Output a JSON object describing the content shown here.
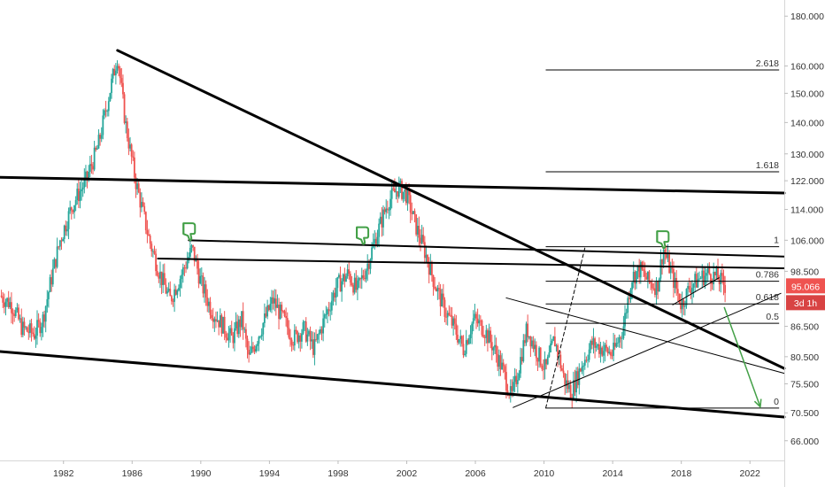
{
  "chart_data": {
    "type": "candlestick",
    "x_range": [
      1978.3,
      2024.0
    ],
    "y_range": [
      63.0,
      187.0
    ],
    "y_scale": "log",
    "x_ticks": [
      "1982",
      "1986",
      "1990",
      "1994",
      "1998",
      "2002",
      "2006",
      "2010",
      "2014",
      "2018",
      "2022"
    ],
    "y_ticks": [
      "180.000",
      "160.000",
      "150.000",
      "140.000",
      "130.000",
      "122.000",
      "114.000",
      "106.000",
      "98.500",
      "86.500",
      "80.500",
      "75.500",
      "70.500",
      "66.000"
    ],
    "price_path": [
      [
        1978.3,
        93
      ],
      [
        1979.0,
        91
      ],
      [
        1979.6,
        86
      ],
      [
        1980.3,
        85
      ],
      [
        1980.8,
        88
      ],
      [
        1981.3,
        97
      ],
      [
        1981.8,
        106
      ],
      [
        1982.5,
        115
      ],
      [
        1983.3,
        122
      ],
      [
        1984.0,
        132
      ],
      [
        1984.6,
        148
      ],
      [
        1985.15,
        164
      ],
      [
        1985.6,
        140
      ],
      [
        1986.2,
        122
      ],
      [
        1987.0,
        106
      ],
      [
        1987.6,
        98
      ],
      [
        1988.2,
        92
      ],
      [
        1988.9,
        98
      ],
      [
        1989.5,
        104
      ],
      [
        1990.0,
        96
      ],
      [
        1990.6,
        90
      ],
      [
        1991.2,
        87
      ],
      [
        1991.8,
        84
      ],
      [
        1992.4,
        88
      ],
      [
        1992.8,
        80
      ],
      [
        1993.5,
        86
      ],
      [
        1994.2,
        92
      ],
      [
        1994.8,
        88
      ],
      [
        1995.4,
        84
      ],
      [
        1996.0,
        86
      ],
      [
        1996.6,
        82
      ],
      [
        1997.2,
        88
      ],
      [
        1997.9,
        95
      ],
      [
        1998.6,
        98
      ],
      [
        1999.1,
        94
      ],
      [
        1999.7,
        100
      ],
      [
        2000.3,
        108
      ],
      [
        2000.9,
        116
      ],
      [
        2001.5,
        120
      ],
      [
        2002.0,
        118
      ],
      [
        2002.5,
        110
      ],
      [
        2003.0,
        104
      ],
      [
        2003.6,
        96
      ],
      [
        2004.2,
        90
      ],
      [
        2004.8,
        86
      ],
      [
        2005.3,
        82
      ],
      [
        2005.9,
        88
      ],
      [
        2006.5,
        86
      ],
      [
        2007.1,
        82
      ],
      [
        2007.6,
        78
      ],
      [
        2008.1,
        73
      ],
      [
        2008.5,
        78
      ],
      [
        2009.0,
        86
      ],
      [
        2009.5,
        82
      ],
      [
        2010.1,
        78
      ],
      [
        2010.6,
        84
      ],
      [
        2011.2,
        76
      ],
      [
        2011.6,
        74
      ],
      [
        2012.2,
        79
      ],
      [
        2012.8,
        83
      ],
      [
        2013.4,
        82
      ],
      [
        2014.0,
        81
      ],
      [
        2014.6,
        86
      ],
      [
        2015.1,
        97
      ],
      [
        2015.6,
        99
      ],
      [
        2016.1,
        96
      ],
      [
        2016.6,
        95
      ],
      [
        2016.95,
        104
      ],
      [
        2017.5,
        97
      ],
      [
        2018.0,
        91
      ],
      [
        2018.5,
        95
      ],
      [
        2019.1,
        97
      ],
      [
        2019.6,
        98
      ],
      [
        2020.1,
        97
      ],
      [
        2020.6,
        95
      ]
    ],
    "last_price": "95.066",
    "countdown": "3d 1h",
    "fib_levels": [
      {
        "label": "2.618",
        "value": 158.5
      },
      {
        "label": "1.618",
        "value": 124.6
      },
      {
        "label": "1",
        "value": 104.4
      },
      {
        "label": "0.786",
        "value": 96.2
      },
      {
        "label": "0.618",
        "value": 91.2
      },
      {
        "label": "0.5",
        "value": 87.1
      },
      {
        "label": "0",
        "value": 71.3
      }
    ],
    "fib_x_range": [
      2010.1,
      2023.7
    ],
    "trendlines": [
      {
        "kind": "thick",
        "from": [
          1985.15,
          166
        ],
        "to": [
          2024.0,
          78.3
        ]
      },
      {
        "kind": "thick",
        "from": [
          1978.3,
          123
        ],
        "to": [
          2024.0,
          118.5
        ]
      },
      {
        "kind": "thick",
        "from": [
          1978.3,
          81.5
        ],
        "to": [
          2024.0,
          69.8
        ]
      },
      {
        "kind": "medium",
        "from": [
          1989.3,
          106.0
        ],
        "to": [
          2024.0,
          102.0
        ]
      },
      {
        "kind": "medium",
        "from": [
          1987.5,
          101.5
        ],
        "to": [
          2024.0,
          99.2
        ]
      },
      {
        "kind": "thin",
        "from": [
          2007.8,
          92.5
        ],
        "to": [
          2024.0,
          77.4
        ]
      },
      {
        "kind": "thin",
        "from": [
          2008.2,
          71.4
        ],
        "to": [
          2023.8,
          93.5
        ]
      },
      {
        "kind": "thin",
        "from": [
          2017.5,
          91.0
        ],
        "to": [
          2020.2,
          97.0
        ]
      },
      {
        "kind": "dashed",
        "from": [
          2010.1,
          71.3
        ],
        "to": [
          2012.4,
          104.4
        ]
      }
    ],
    "annotations": [
      {
        "kind": "thumbs-down-icon",
        "x": 1989.3,
        "y": 108.5
      },
      {
        "kind": "thumbs-down-icon",
        "x": 1999.4,
        "y": 107.5
      },
      {
        "kind": "thumbs-down-icon",
        "x": 2016.9,
        "y": 106.5
      },
      {
        "kind": "down-arrow",
        "from": [
          2020.5,
          90.5
        ],
        "to": [
          2022.6,
          71.5
        ]
      }
    ],
    "colors": {
      "up": "#26a69a",
      "down": "#ef5350",
      "price_tag": "#ef5350",
      "countdown_tag": "#d84343",
      "annotation": "#43a047",
      "lines": "#000000"
    }
  }
}
